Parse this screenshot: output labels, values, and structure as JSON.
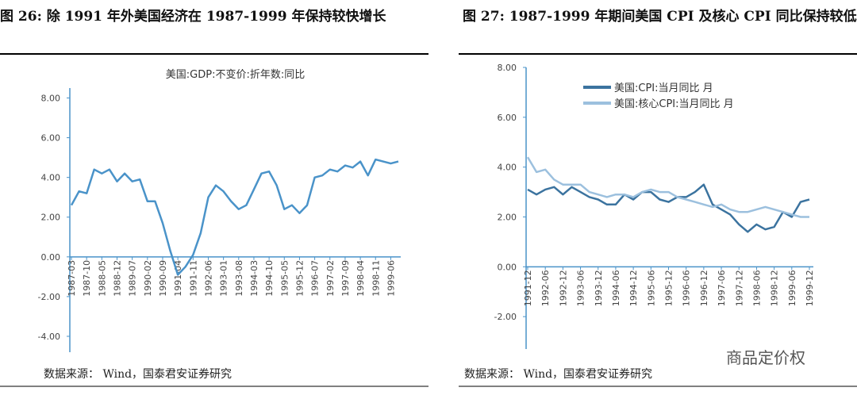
{
  "chart_data": [
    {
      "type": "line",
      "title": "图 26: 除 1991 年外美国经济在 1987-1999 年保持较快增长",
      "source": "数据来源： Wind，国泰君安证券研究",
      "categories": [
        "1987-03",
        null,
        "1987-10",
        null,
        "1988-05",
        null,
        "1988-12",
        null,
        "1989-07",
        null,
        "1990-02",
        null,
        "1990-09",
        null,
        "1991-04",
        null,
        "1991-11",
        null,
        "1992-06",
        null,
        "1993-01",
        null,
        "1993-08",
        null,
        "1994-03",
        null,
        "1994-10",
        null,
        "1995-05",
        null,
        "1995-12",
        null,
        "1996-07",
        null,
        "1997-02",
        null,
        "1997-09",
        null,
        "1998-04",
        null,
        "1998-11",
        null,
        "1999-06",
        null
      ],
      "series": [
        {
          "name": "美国:GDP:不变价:折年数:同比",
          "color": "#4a93c9",
          "values": [
            2.6,
            3.3,
            3.2,
            4.4,
            4.2,
            4.4,
            3.8,
            4.2,
            3.8,
            3.9,
            2.8,
            2.8,
            1.7,
            0.3,
            -0.9,
            -0.5,
            0.1,
            1.2,
            3.0,
            3.6,
            3.3,
            2.8,
            2.4,
            2.6,
            3.4,
            4.2,
            4.3,
            3.6,
            2.4,
            2.6,
            2.2,
            2.6,
            4.0,
            4.1,
            4.4,
            4.3,
            4.6,
            4.5,
            4.8,
            4.1,
            4.9,
            4.8,
            4.7,
            4.8
          ]
        }
      ],
      "ylim": [
        -4.8,
        8.5
      ],
      "yticks": [
        {
          "value": -4,
          "label": "-4.00"
        },
        {
          "value": -2,
          "label": "-2.00"
        },
        {
          "value": 0,
          "label": "0.00"
        },
        {
          "value": 2,
          "label": "2.00"
        },
        {
          "value": 4,
          "label": "4.00"
        },
        {
          "value": 6,
          "label": "6.00"
        },
        {
          "value": 8,
          "label": "8.00"
        }
      ],
      "legend": "top-center"
    },
    {
      "type": "line",
      "title": "图 27: 1987-1999 年期间美国 CPI 及核心 CPI 同比保持较低水平",
      "source": "数据来源： Wind，国泰君安证券研究",
      "categories": [
        "1991-12",
        null,
        "1992-06",
        null,
        "1992-12",
        null,
        "1993-06",
        null,
        "1993-12",
        null,
        "1994-06",
        null,
        "1994-12",
        null,
        "1995-06",
        null,
        "1995-12",
        null,
        "1996-06",
        null,
        "1996-12",
        null,
        "1997-06",
        null,
        "1997-12",
        null,
        "1998-06",
        null,
        "1998-12",
        null,
        "1999-06",
        null,
        "1999-12"
      ],
      "series": [
        {
          "name": "美国:CPI:当月同比 月",
          "color": "#3b739f",
          "values": [
            3.1,
            2.9,
            3.1,
            3.2,
            2.9,
            3.2,
            3.0,
            2.8,
            2.7,
            2.5,
            2.5,
            2.9,
            2.7,
            3.0,
            3.0,
            2.7,
            2.6,
            2.8,
            2.8,
            3.0,
            3.3,
            2.5,
            2.3,
            2.1,
            1.7,
            1.4,
            1.7,
            1.5,
            1.6,
            2.2,
            2.0,
            2.6,
            2.7
          ]
        },
        {
          "name": "美国:核心CPI:当月同比 月",
          "color": "#9cc0de",
          "values": [
            4.4,
            3.8,
            3.9,
            3.5,
            3.3,
            3.3,
            3.3,
            3.0,
            2.9,
            2.8,
            2.9,
            2.9,
            2.8,
            3.0,
            3.1,
            3.0,
            3.0,
            2.8,
            2.7,
            2.6,
            2.5,
            2.4,
            2.5,
            2.3,
            2.2,
            2.2,
            2.3,
            2.4,
            2.3,
            2.2,
            2.1,
            2.0,
            2.0
          ]
        }
      ],
      "ylim": [
        -3.3,
        8
      ],
      "yticks": [
        {
          "value": -2,
          "label": "-2.00"
        },
        {
          "value": 0,
          "label": "0.00"
        },
        {
          "value": 2,
          "label": "2.00"
        },
        {
          "value": 4,
          "label": "4.00"
        },
        {
          "value": 6,
          "label": "6.00"
        },
        {
          "value": 8,
          "label": "8.00"
        }
      ],
      "legend": "top-left"
    }
  ],
  "watermark": "商品定价权"
}
